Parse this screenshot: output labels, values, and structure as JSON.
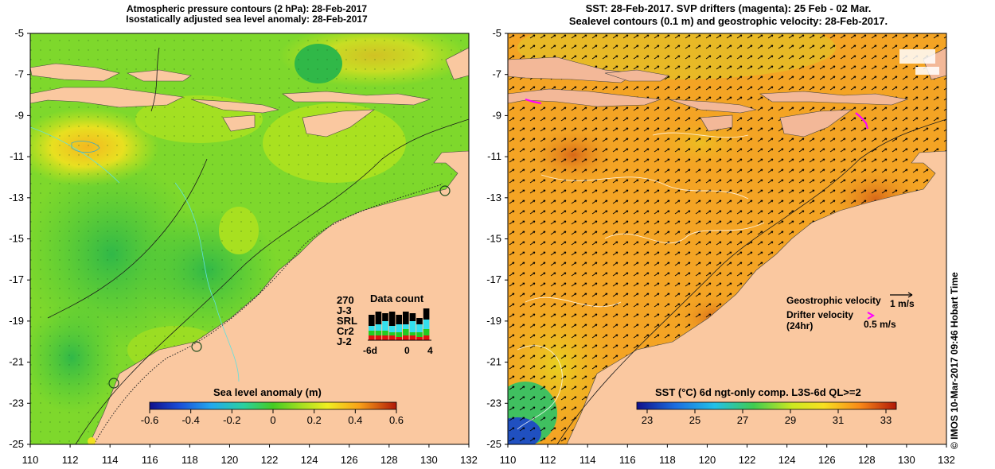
{
  "left_panel": {
    "title_line1": "Atmospheric pressure contours (2 hPa): 28-Feb-2017",
    "title_line2": "Isostatically adjusted sea level anomaly: 28-Feb-2017",
    "colorbar": {
      "label": "Sea level anomaly (m)",
      "ticks": [
        "-0.6",
        "-0.4",
        "-0.2",
        "0",
        "0.2",
        "0.4",
        "0.6"
      ],
      "min": -0.6,
      "max": 0.6
    },
    "data_count": {
      "title": "Data count",
      "max_label": "270",
      "x_ticks": [
        "-6d",
        "0",
        "4"
      ],
      "missions": [
        {
          "label": "J-3",
          "color": "#000000"
        },
        {
          "label": "SRL",
          "color": "#33e0ee"
        },
        {
          "label": "Cr2",
          "color": "#22cc22"
        },
        {
          "label": "J-2",
          "color": "#e01010"
        }
      ]
    }
  },
  "right_panel": {
    "title_line1": "SST: 28-Feb-2017. SVP drifters (magenta): 25 Feb - 02 Mar.",
    "title_line2": "Sealevel contours (0.1 m) and geostrophic velocity: 28-Feb-2017.",
    "colorbar": {
      "label": "SST (°C) 6d ngt-only comp. L3S-6d QL>=2",
      "ticks": [
        "23",
        "25",
        "27",
        "29",
        "31",
        "33"
      ],
      "min": 23,
      "max": 33
    },
    "legend": {
      "geostrophic_label": "Geostrophic velocity",
      "geostrophic_scale": "1 m/s",
      "drifter_label": "Drifter velocity",
      "drifter_sublabel": "(24hr)",
      "drifter_scale": "0.5 m/s"
    }
  },
  "axes": {
    "lon_ticks": [
      "110",
      "112",
      "114",
      "116",
      "118",
      "120",
      "122",
      "124",
      "126",
      "128",
      "130",
      "132"
    ],
    "lat_ticks": [
      "-5",
      "-7",
      "-9",
      "-11",
      "-13",
      "-15",
      "-17",
      "-19",
      "-21",
      "-23",
      "-25"
    ],
    "lon_range": [
      110,
      132
    ],
    "lat_range": [
      -25,
      -5
    ]
  },
  "credit": "© IMOS 10-Mar-2017 09:46 Hobart Time",
  "colors": {
    "land": "#fac8a0",
    "island": "#f3b898",
    "ssl_green": "#62d630",
    "ssl_yellow": "#c9e418",
    "sst_orange": "#f4a020",
    "drifter": "#ff00ff"
  }
}
